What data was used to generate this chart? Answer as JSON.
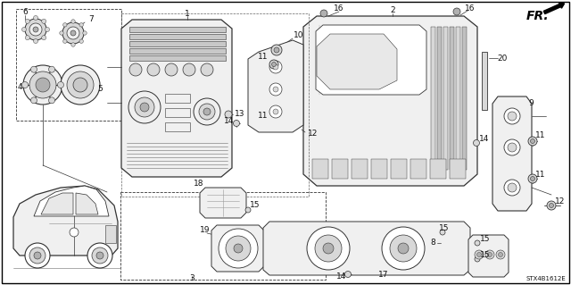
{
  "background_color": "#ffffff",
  "border_color": "#000000",
  "diagram_code": "STX4B1612E",
  "fr_label": "FR.",
  "fig_width": 6.4,
  "fig_height": 3.19,
  "dpi": 100,
  "line_color": "#333333",
  "text_color": "#111111",
  "part_label_fontsize": 6.5,
  "fill_light": "#f0f0f0",
  "fill_mid": "#d8d8d8",
  "fill_dark": "#b0b0b0",
  "fill_white": "#ffffff",
  "lw_thick": 1.0,
  "lw_mid": 0.7,
  "lw_thin": 0.5,
  "lw_hair": 0.35
}
